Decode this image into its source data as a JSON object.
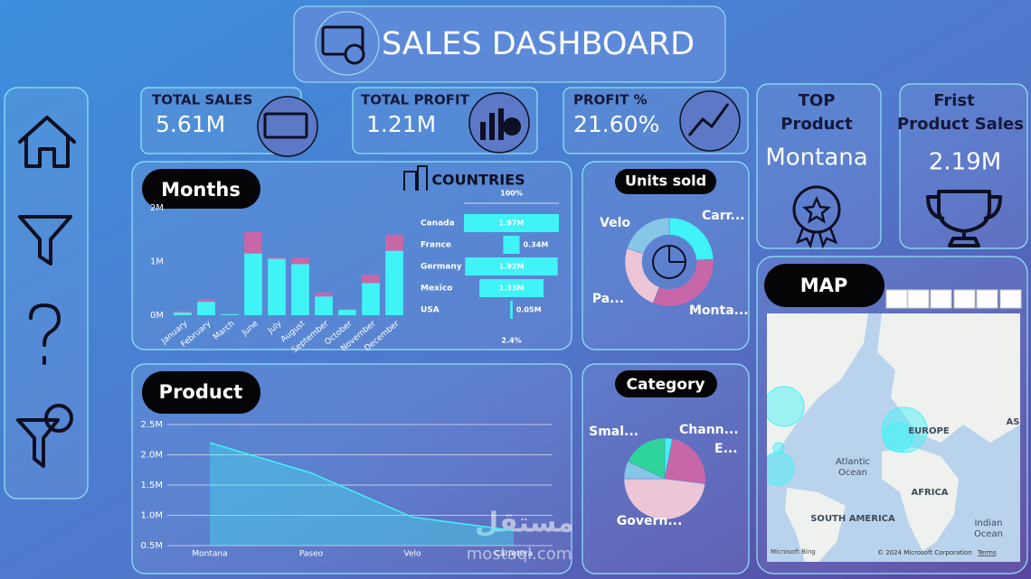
{
  "header": {
    "title": "SALES DASHBOARD"
  },
  "kpis": [
    {
      "label": "TOTAL SALES",
      "value": "5.61M"
    },
    {
      "label": "TOTAL PROFIT",
      "value": "1.21M"
    },
    {
      "label": "PROFIT %",
      "value": "21.60%"
    }
  ],
  "top_product": {
    "label": [
      "TOP",
      "Product"
    ],
    "value": "Montana"
  },
  "first_product_sales": {
    "label": [
      "Frist",
      "Product Sales"
    ],
    "value": "2.19M"
  },
  "chart_data": [
    {
      "type": "bar",
      "stacked": true,
      "title": "Months",
      "categories": [
        "January",
        "February",
        "March",
        "June",
        "July",
        "August",
        "September",
        "October",
        "November",
        "December"
      ],
      "series": [
        {
          "color": "#3ff3f7",
          "values": [
            0.05,
            0.25,
            0.02,
            1.15,
            1.05,
            0.95,
            0.35,
            0.1,
            0.6,
            1.2
          ]
        },
        {
          "color": "#c867a8",
          "values": [
            0.03,
            0.05,
            0.01,
            0.4,
            0.03,
            0.12,
            0.07,
            0.02,
            0.15,
            0.3
          ]
        }
      ],
      "ylim": [
        0,
        2
      ],
      "yticks": [
        {
          "value": 0,
          "label": "0M"
        },
        {
          "value": 1,
          "label": "1M"
        },
        {
          "value": 2,
          "label": "2M"
        }
      ]
    },
    {
      "type": "funnel",
      "title": "COUNTRIES",
      "categories": [
        "Canada",
        "France",
        "Germany",
        "Mexico",
        "USA"
      ],
      "values": [
        1.97,
        0.34,
        1.92,
        1.33,
        0.05
      ],
      "value_labels": [
        "1.97M",
        "0.34M",
        "1.92M",
        "1.33M",
        "0.05M"
      ],
      "color": "#3ff3f7",
      "annotations": [
        "100%",
        "2.4%"
      ]
    },
    {
      "type": "donut",
      "title": "Units sold",
      "categories": [
        "Carr...",
        "Monta...",
        "Pa...",
        "Velo"
      ],
      "values": [
        24,
        32,
        24,
        20
      ],
      "colors": [
        "#3ff3f7",
        "#c867a8",
        "#ecc6d6",
        "#86c6e6"
      ]
    },
    {
      "type": "area",
      "title": "Product",
      "categories": [
        "Montana",
        "Paseo",
        "Velo",
        "Carretera"
      ],
      "values": [
        2.2,
        1.7,
        0.97,
        0.75
      ],
      "color": "#3ff3f7",
      "ylim": [
        0.5,
        2.5
      ],
      "yticks": [
        {
          "value": 0.5,
          "label": "0.5M"
        },
        {
          "value": 1.0,
          "label": "1.0M"
        },
        {
          "value": 1.5,
          "label": "1.5M"
        },
        {
          "value": 2.0,
          "label": "2.0M"
        },
        {
          "value": 2.5,
          "label": "2.5M"
        }
      ],
      "grid": true
    },
    {
      "type": "pie",
      "title": "Category",
      "categories": [
        "Chann...",
        "E...",
        "Govern...",
        null,
        "Smal..."
      ],
      "values": [
        3,
        24,
        48,
        7,
        18
      ],
      "colors": [
        "#3ff3f7",
        "#c867a8",
        "#ecc6d6",
        "#86c6e6",
        "#2fd49a"
      ]
    }
  ],
  "map": {
    "title": "MAP",
    "labels": [
      "Atlantic",
      "Ocean",
      "EUROPE",
      "AFRICA",
      "SOUTH AMERICA",
      "Indian",
      "Ocean",
      "AS"
    ],
    "attribution": [
      "Microsoft Bing",
      "© 2024 Microsoft Corporation",
      "Terms"
    ]
  },
  "watermark": [
    "مستقل",
    "mostaql.com"
  ]
}
